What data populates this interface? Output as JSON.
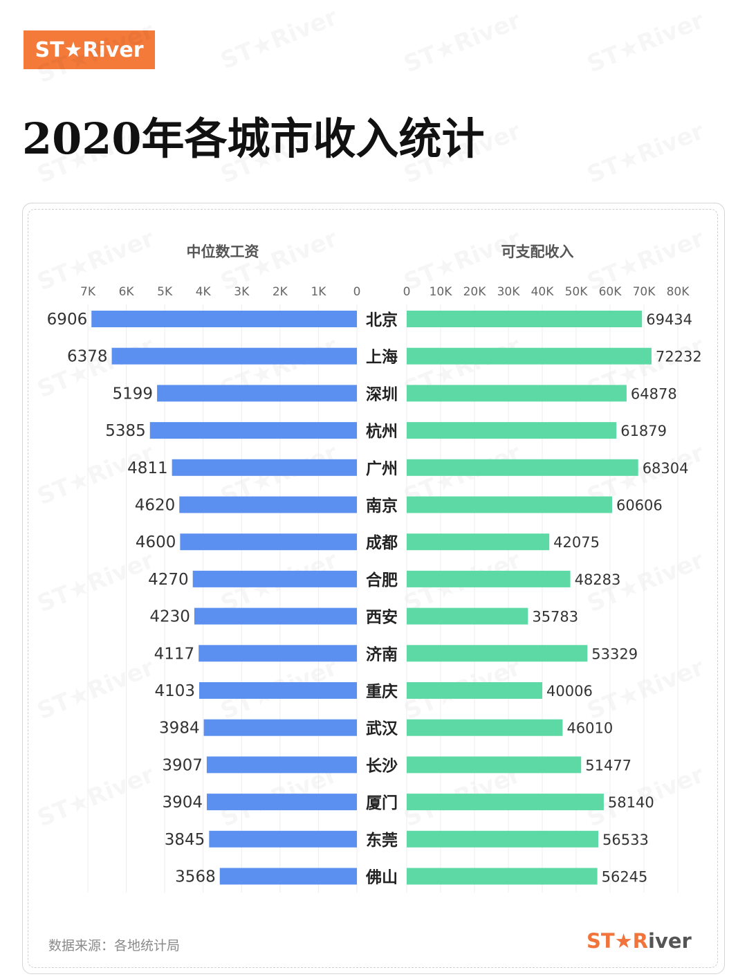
{
  "brand": {
    "logo_text": "ST★River",
    "footer_logo_accent": "ST★R",
    "footer_logo_rest": "iver"
  },
  "title": "2020年各城市收入统计",
  "source": "数据来源：各地统计局",
  "colors": {
    "brand": "#f47a3a",
    "left_bar": "#5b8ff0",
    "right_bar": "#5cd9a4"
  },
  "chart_data": {
    "type": "bar",
    "categories": [
      "北京",
      "上海",
      "深圳",
      "杭州",
      "广州",
      "南京",
      "成都",
      "合肥",
      "西安",
      "济南",
      "重庆",
      "武汉",
      "长沙",
      "厦门",
      "东莞",
      "佛山"
    ],
    "series": [
      {
        "name": "中位数工资",
        "values": [
          6906,
          6378,
          5199,
          5385,
          4811,
          4620,
          4600,
          4270,
          4230,
          4117,
          4103,
          3984,
          3907,
          3904,
          3845,
          3568
        ],
        "xlim": [
          0,
          7000
        ],
        "ticks": [
          7000,
          6000,
          5000,
          4000,
          3000,
          2000,
          1000,
          0
        ],
        "tick_labels": [
          "7K",
          "6K",
          "5K",
          "4K",
          "3K",
          "2K",
          "1K",
          "0"
        ]
      },
      {
        "name": "可支配收入",
        "values": [
          69434,
          72232,
          64878,
          61879,
          68304,
          60606,
          42075,
          48283,
          35783,
          53329,
          40006,
          46010,
          51477,
          58140,
          56533,
          56245
        ],
        "xlim": [
          0,
          80000
        ],
        "ticks": [
          0,
          10000,
          20000,
          30000,
          40000,
          50000,
          60000,
          70000,
          80000
        ],
        "tick_labels": [
          "0",
          "10K",
          "20K",
          "30K",
          "40K",
          "50K",
          "60K",
          "70K",
          "80K"
        ]
      }
    ]
  }
}
